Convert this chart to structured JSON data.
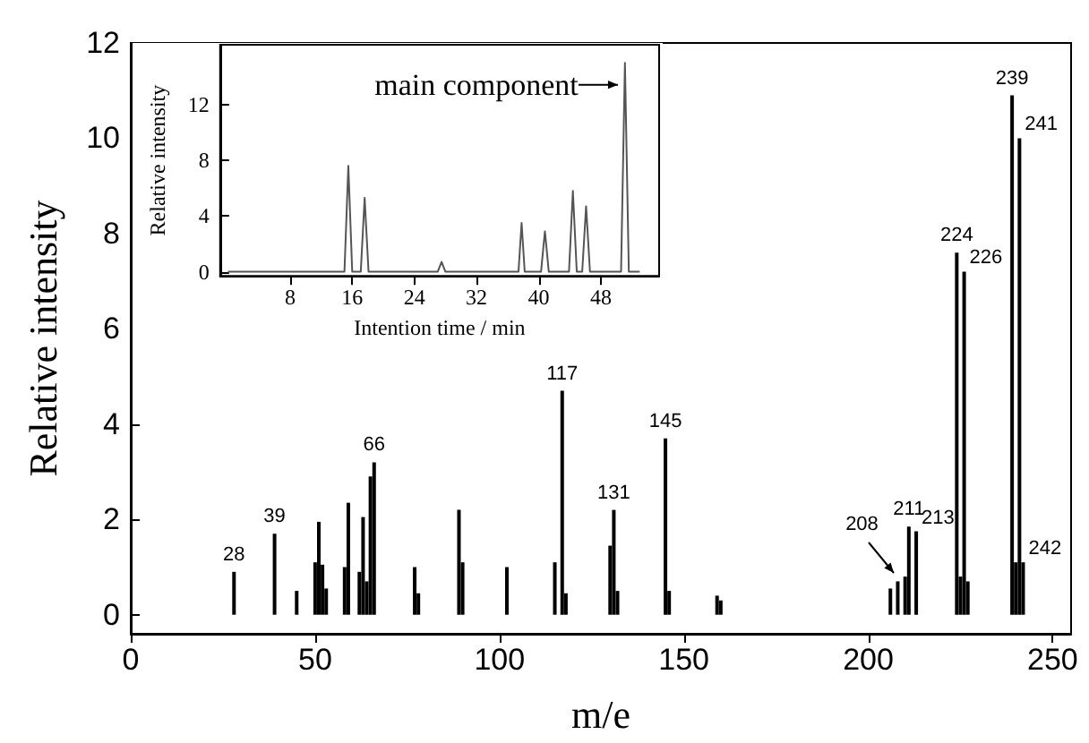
{
  "chart_data": [
    {
      "type": "bar",
      "xlabel": "m/e",
      "ylabel": "Relative intensity",
      "color": "#000000",
      "x": [
        28,
        39,
        45,
        50,
        51,
        52,
        53,
        58,
        59,
        62,
        63,
        64,
        65,
        66,
        77,
        78,
        89,
        90,
        102,
        115,
        117,
        118,
        130,
        131,
        132,
        145,
        146,
        159,
        160,
        206,
        208,
        210,
        211,
        213,
        224,
        225,
        226,
        227,
        239,
        240,
        241,
        242
      ],
      "values": [
        0.9,
        1.7,
        0.5,
        1.1,
        1.95,
        1.05,
        0.55,
        1.0,
        2.35,
        0.9,
        2.05,
        0.7,
        2.9,
        3.2,
        1.0,
        0.45,
        2.2,
        1.1,
        1.0,
        1.1,
        4.7,
        0.45,
        1.45,
        2.2,
        0.5,
        3.7,
        0.5,
        0.4,
        0.3,
        0.55,
        0.7,
        0.8,
        1.85,
        1.75,
        7.6,
        0.8,
        7.2,
        0.7,
        10.9,
        1.1,
        10.0,
        1.1
      ],
      "xlim": [
        0,
        255
      ],
      "ylim": [
        -0.4,
        12
      ],
      "xticks": [
        0,
        50,
        100,
        150,
        200,
        250
      ],
      "yticks": [
        0,
        2,
        4,
        6,
        8,
        10,
        12
      ],
      "annotations": [
        {
          "text": "28",
          "x": 28,
          "y": 0.9
        },
        {
          "text": "39",
          "x": 39,
          "y": 1.7
        },
        {
          "text": "66",
          "x": 66,
          "y": 3.2
        },
        {
          "text": "117",
          "x": 117,
          "y": 4.7
        },
        {
          "text": "131",
          "x": 131,
          "y": 2.2
        },
        {
          "text": "145",
          "x": 145,
          "y": 3.7
        },
        {
          "text": "208",
          "x": 208,
          "y": 0.7
        },
        {
          "text": "211",
          "x": 211,
          "y": 1.85
        },
        {
          "text": "213",
          "x": 213,
          "y": 1.75
        },
        {
          "text": "224",
          "x": 224,
          "y": 7.6
        },
        {
          "text": "226",
          "x": 226,
          "y": 7.2
        },
        {
          "text": "239",
          "x": 239,
          "y": 10.9
        },
        {
          "text": "241",
          "x": 241,
          "y": 10.0
        },
        {
          "text": "242",
          "x": 242,
          "y": 1.1
        }
      ]
    },
    {
      "type": "line",
      "xlabel": "Intention time / min",
      "ylabel": "Relative intensity",
      "color": "#555555",
      "x": [
        0,
        15,
        15.5,
        16,
        17.1,
        17.6,
        18.1,
        27,
        27.5,
        28,
        37.4,
        37.8,
        38.2,
        40.3,
        40.8,
        41.3,
        43.9,
        44.4,
        44.9,
        45.6,
        46.1,
        46.6,
        50.6,
        51.1,
        51.6,
        53
      ],
      "values": [
        0,
        0,
        7.6,
        0,
        0,
        5.3,
        0,
        0,
        0.7,
        0,
        0,
        3.5,
        0,
        0,
        2.9,
        0,
        0,
        5.8,
        0,
        0,
        4.7,
        0,
        0,
        15,
        0,
        0
      ],
      "xlim": [
        -1,
        55.5
      ],
      "ylim": [
        -0.3,
        16.3
      ],
      "xticks": [
        8,
        16,
        24,
        32,
        40,
        48
      ],
      "yticks": [
        0,
        4,
        8,
        12
      ],
      "annotations": [
        {
          "text": "main component",
          "x": 51.1,
          "y": 13.4
        }
      ]
    }
  ]
}
